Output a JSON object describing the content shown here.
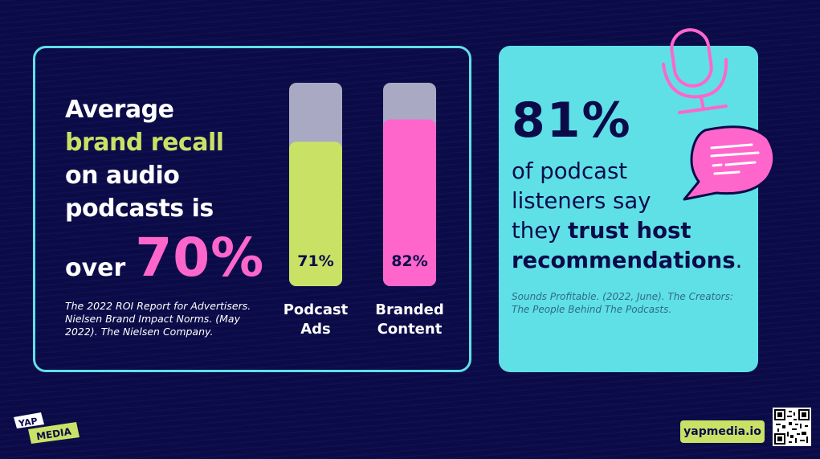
{
  "headline": {
    "line1": "Average",
    "line2": "brand recall",
    "line3": "on audio",
    "line4": "podcasts is",
    "over": "over",
    "big_value": "70%"
  },
  "left_citation": "The 2022 ROI Report for Advertisers. Nielsen Brand Impact Norms. (May 2022). The Nielsen Company.",
  "chart_data": {
    "type": "bar",
    "categories": [
      "Podcast Ads",
      "Branded Content"
    ],
    "category_lines": [
      [
        "Podcast",
        "Ads"
      ],
      [
        "Branded",
        "Content"
      ]
    ],
    "values": [
      71,
      82
    ],
    "value_labels": [
      "71%",
      "82%"
    ],
    "ylim": [
      0,
      100
    ],
    "title": "",
    "xlabel": "",
    "ylabel": "",
    "grid": false,
    "colors": [
      "#c9e266",
      "#ff66cc"
    ],
    "track_color": "#a9a9c4"
  },
  "stat": {
    "value": "81%",
    "line1": "of podcast",
    "line2": "listeners say",
    "line3_plain": "they ",
    "line3_bold": "trust host",
    "line4_bold": "recommendations",
    "line4_end": "."
  },
  "right_citation": "Sounds Profitable. (2022, June). The Creators: The People Behind The Podcasts.",
  "logo": {
    "line1": "YAP",
    "line2": "MEDIA"
  },
  "site": "yapmedia.io",
  "icons": [
    "microphone-icon",
    "speech-bubble-icon",
    "qr-code-icon"
  ],
  "colors": {
    "background": "#0b0b4a",
    "accent_cyan": "#5fe0e7",
    "accent_green": "#c9e266",
    "accent_pink": "#ff66cc"
  }
}
